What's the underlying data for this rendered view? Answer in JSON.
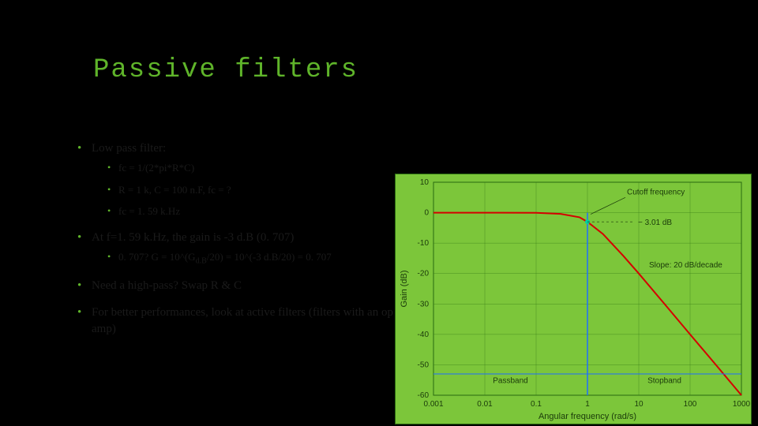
{
  "title": "Passive filters",
  "bullets": {
    "b1": "Low pass filter:",
    "b1a": "fc = 1/(2*pi*R*C)",
    "b1b": "R = 1 k, C = 100 n.F, fc = ?",
    "b1c": "fc = 1. 59 k.Hz",
    "b2": "At f=1. 59 k.Hz, the gain is -3 d.B (0. 707)",
    "b2a_pre": "0. 707? G = 10^(G",
    "b2a_sub": "d.B",
    "b2a_post": "/20) = 10^(-3 d.B/20) = 0. 707",
    "b3": "Need a high-pass? Swap R & C",
    "b4": "For better performances, look at active filters (filters with an op amp)"
  },
  "chart": {
    "type": "line",
    "background_color": "#7cc63a",
    "grid_color": "#2a6b10",
    "line_color": "#d40000",
    "cutoff_marker_color": "#1e6eff",
    "cutoff_dot_color": "#00d0a0",
    "text_color": "#1a3a0a",
    "xlabel": "Angular frequency (rad/s)",
    "ylabel": "Gain (dB)",
    "xticks": [
      "0.001",
      "0.01",
      "0.1",
      "1",
      "10",
      "100",
      "1000"
    ],
    "yticks": [
      "10",
      "0",
      "-10",
      "-20",
      "-30",
      "-40",
      "-50",
      "-60"
    ],
    "annotations": {
      "cutoff": "Cutoff frequency",
      "minus3db": "− 3.01 dB",
      "slope": "Slope: 20 dB/decade",
      "passband": "Passband",
      "stopband": "Stopband"
    },
    "curve_points": [
      [
        0.001,
        0
      ],
      [
        0.01,
        0
      ],
      [
        0.1,
        -0.05
      ],
      [
        0.3,
        -0.4
      ],
      [
        0.7,
        -1.5
      ],
      [
        1.0,
        -3.01
      ],
      [
        2.0,
        -7.0
      ],
      [
        5.0,
        -14.2
      ],
      [
        10,
        -20.0
      ],
      [
        30,
        -29.5
      ],
      [
        100,
        -40.0
      ],
      [
        300,
        -49.5
      ],
      [
        1000,
        -60.0
      ]
    ],
    "xlim_log": [
      -3,
      3
    ],
    "ylim": [
      -60,
      10
    ]
  }
}
